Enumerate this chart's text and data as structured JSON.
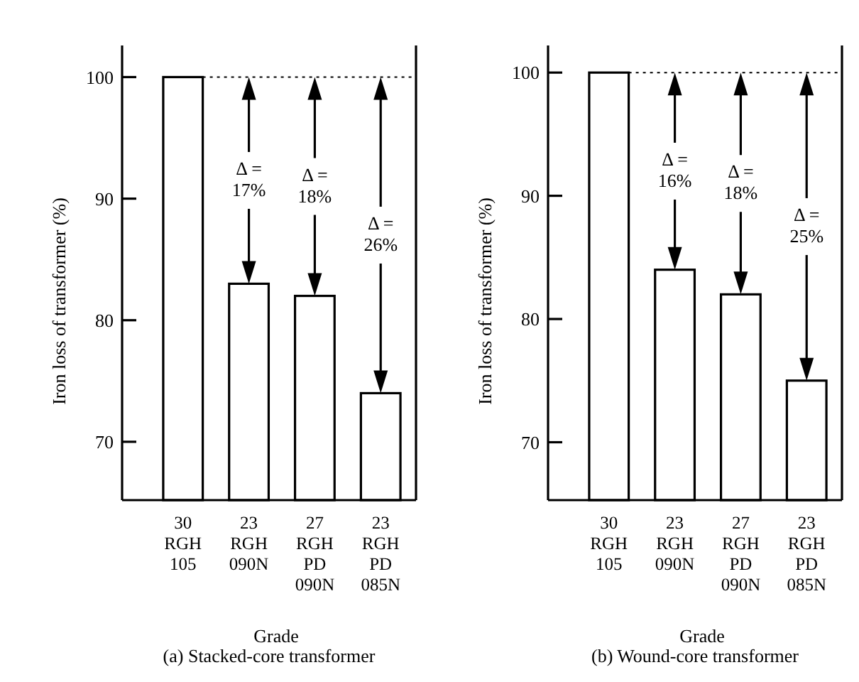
{
  "chart_data": [
    {
      "type": "bar",
      "title": "(a) Stacked-core transformer",
      "xlabel": "Grade",
      "ylabel": "Iron loss of transformer (%)",
      "categories": [
        "30\nRGH\n105",
        "23\nRGH\n090N",
        "27\nRGH\nPD\n090N",
        "23\nRGH\nPD\n085N"
      ],
      "values": [
        100,
        83,
        82,
        74
      ],
      "color": "#ffffff",
      "ylim": [
        65.2,
        102.6
      ],
      "yticks": [
        70,
        80,
        90,
        {
          "value": 100,
          "label": "100"
        }
      ],
      "ref_lines": [
        {
          "axis": "y",
          "value": 100,
          "line_style": "dotted"
        }
      ],
      "annotations": [
        "Δ = 17%",
        "Δ = 18%",
        "Δ = 26%"
      ]
    },
    {
      "type": "bar",
      "title": "(b) Wound-core transformer",
      "xlabel": "Grade",
      "ylabel": "Iron loss of transformer (%)",
      "categories": [
        "30\nRGH\n105",
        "23\nRGH\n090N",
        "27\nRGH\nPD\n090N",
        "23\nRGH\nPD\n085N"
      ],
      "values": [
        100,
        84,
        82,
        75
      ],
      "color": "#ffffff",
      "ylim": [
        65.3,
        102.2
      ],
      "yticks": [
        70,
        80,
        90,
        {
          "value": 100,
          "label": "100"
        }
      ],
      "ref_lines": [
        {
          "axis": "y",
          "value": 100,
          "line_style": "dotted"
        }
      ],
      "annotations": [
        "Δ = 16%",
        "Δ = 18%",
        "Δ = 25%"
      ]
    }
  ]
}
